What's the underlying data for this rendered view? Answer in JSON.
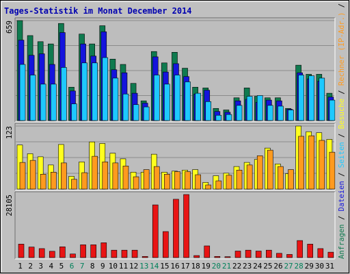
{
  "title": "Tages-Statistik im Monat December 2014",
  "colors": {
    "background": "#c0c0c0",
    "panel": "#bdbdbd",
    "grid": "#8a8a8a",
    "title": "#0000b0",
    "hits": "#0f7a4f",
    "files": "#1414dc",
    "pages": "#1ec8ff",
    "visits": "#ffff1e",
    "sites": "#ff9a1e",
    "kbytes": "#e81414",
    "weekend_label": "#00805a",
    "weekday_label": "#000000"
  },
  "right_label_parts": [
    {
      "text": "Anfragen",
      "color": "#0f7a4f"
    },
    {
      "text": " / ",
      "color": "#000000"
    },
    {
      "text": "Dateien",
      "color": "#1414dc"
    },
    {
      "text": " / ",
      "color": "#000000"
    },
    {
      "text": "Seiten",
      "color": "#1ec8ff"
    },
    {
      "text": " / ",
      "color": "#000000"
    },
    {
      "text": "Besuche",
      "color": "#ffff1e"
    },
    {
      "text": " / ",
      "color": "#000000"
    },
    {
      "text": "Rechner (IP-Adr.)",
      "color": "#ff9a1e"
    },
    {
      "text": " / ",
      "color": "#000000"
    },
    {
      "text": "kB Out",
      "color": "#00805a"
    },
    {
      "text": " / ",
      "color": "#000000"
    },
    {
      "text": "kB In",
      "color": "#1414dc"
    },
    {
      "text": " / ",
      "color": "#000000"
    },
    {
      "text": "kB F",
      "color": "#e81414"
    }
  ],
  "chart_data": [
    {
      "type": "bar",
      "panel": "hits-files-pages",
      "ymax_label": "659",
      "ylim": [
        0,
        659
      ],
      "categories": [
        "1",
        "2",
        "3",
        "4",
        "5",
        "6",
        "7",
        "8",
        "9",
        "10",
        "11",
        "12",
        "13",
        "14",
        "15",
        "16",
        "17",
        "18",
        "19",
        "20",
        "21",
        "22",
        "23",
        "24",
        "25",
        "26",
        "27",
        "28",
        "29",
        "30",
        "31"
      ],
      "weekend_days": [
        "6",
        "7",
        "13",
        "14",
        "20",
        "21",
        "27",
        "28"
      ],
      "series": [
        {
          "key": "hits",
          "values": [
            659,
            560,
            520,
            505,
            640,
            220,
            570,
            505,
            625,
            405,
            370,
            245,
            130,
            455,
            380,
            450,
            345,
            220,
            215,
            80,
            70,
            150,
            215,
            160,
            150,
            150,
            80,
            365,
            305,
            305,
            180
          ]
        },
        {
          "key": "files",
          "values": [
            530,
            430,
            440,
            370,
            580,
            195,
            505,
            425,
            585,
            335,
            315,
            180,
            115,
            420,
            320,
            375,
            290,
            175,
            200,
            60,
            55,
            130,
            140,
            120,
            135,
            130,
            75,
            315,
            275,
            260,
            155
          ]
        },
        {
          "key": "pages",
          "values": [
            370,
            300,
            240,
            240,
            350,
            110,
            380,
            380,
            415,
            280,
            175,
            105,
            90,
            300,
            240,
            300,
            255,
            180,
            125,
            35,
            40,
            100,
            160,
            165,
            100,
            95,
            70,
            300,
            295,
            280,
            135
          ]
        }
      ]
    },
    {
      "type": "bar",
      "panel": "visits-sites",
      "ymax_label": "123",
      "ylim": [
        0,
        123
      ],
      "categories": [
        "1",
        "2",
        "3",
        "4",
        "5",
        "6",
        "7",
        "8",
        "9",
        "10",
        "11",
        "12",
        "13",
        "14",
        "15",
        "16",
        "17",
        "18",
        "19",
        "20",
        "21",
        "22",
        "23",
        "24",
        "25",
        "26",
        "27",
        "28",
        "29",
        "30",
        "31"
      ],
      "series": [
        {
          "key": "visits",
          "values": [
            86,
            69,
            63,
            47,
            87,
            25,
            53,
            92,
            89,
            70,
            59,
            33,
            33,
            68,
            33,
            35,
            37,
            38,
            13,
            26,
            31,
            44,
            52,
            58,
            80,
            49,
            30,
            123,
            112,
            110,
            97
          ]
        },
        {
          "key": "sites",
          "values": [
            52,
            56,
            29,
            33,
            51,
            19,
            32,
            64,
            53,
            51,
            45,
            24,
            38,
            44,
            29,
            34,
            34,
            28,
            8,
            16,
            27,
            37,
            47,
            65,
            76,
            44,
            38,
            103,
            104,
            95,
            72
          ]
        }
      ]
    },
    {
      "type": "bar",
      "panel": "kbytes",
      "ymax_label": "28105",
      "ylim": [
        0,
        28105
      ],
      "categories": [
        "1",
        "2",
        "3",
        "4",
        "5",
        "6",
        "7",
        "8",
        "9",
        "10",
        "11",
        "12",
        "13",
        "14",
        "15",
        "16",
        "17",
        "18",
        "19",
        "20",
        "21",
        "22",
        "23",
        "24",
        "25",
        "26",
        "27",
        "28",
        "29",
        "30",
        "31"
      ],
      "series": [
        {
          "key": "kbytes",
          "values": [
            6000,
            4700,
            4000,
            2800,
            4800,
            1600,
            5700,
            5700,
            6600,
            3300,
            3300,
            3300,
            500,
            23500,
            11600,
            26000,
            28105,
            900,
            5200,
            500,
            400,
            2900,
            3300,
            2900,
            3300,
            1900,
            1400,
            7600,
            6000,
            4000,
            2400
          ]
        }
      ]
    }
  ]
}
